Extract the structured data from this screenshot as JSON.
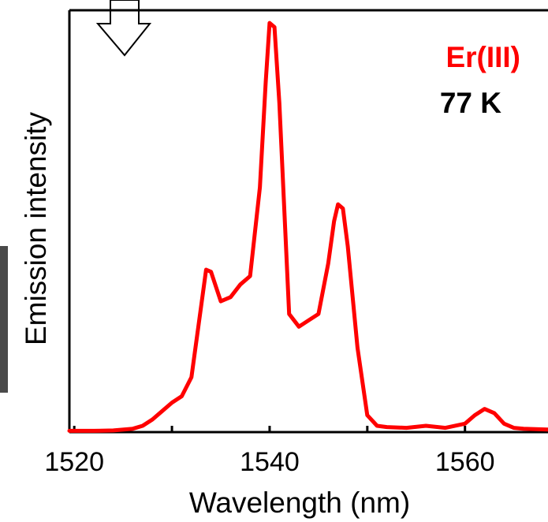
{
  "chart_data": {
    "type": "line",
    "xlabel": "Wavelength (nm)",
    "ylabel": "Emission intensity",
    "xlim": [
      1519.5,
      1568.5
    ],
    "ylim": [
      0,
      1.0
    ],
    "x_ticks": [
      1520,
      1530,
      1540,
      1550,
      1560
    ],
    "x_tick_labels": [
      "1520",
      "",
      "1540",
      "",
      "1560"
    ],
    "y_ticks_shown": false,
    "grid": false,
    "annotations": [
      {
        "text": "Er(III)",
        "color": "#ff0000"
      },
      {
        "text": "77 K",
        "color": "#000000"
      }
    ],
    "series": [
      {
        "color": "#ff0000",
        "x": [
          1519.5,
          1522,
          1524,
          1526,
          1527,
          1528,
          1529,
          1530,
          1531,
          1532,
          1533,
          1533.5,
          1534,
          1535,
          1536,
          1537,
          1538,
          1539,
          1539.6,
          1540,
          1540.5,
          1541,
          1542,
          1543,
          1544,
          1545,
          1546,
          1546.6,
          1547,
          1547.5,
          1548,
          1549,
          1550,
          1551,
          1552,
          1554,
          1556,
          1558,
          1560,
          1561,
          1562,
          1563,
          1564,
          1565,
          1566,
          1568.5
        ],
        "y": [
          0.003,
          0.003,
          0.004,
          0.008,
          0.015,
          0.03,
          0.05,
          0.07,
          0.085,
          0.13,
          0.3,
          0.385,
          0.38,
          0.31,
          0.32,
          0.35,
          0.37,
          0.58,
          0.83,
          0.97,
          0.96,
          0.78,
          0.28,
          0.25,
          0.265,
          0.28,
          0.4,
          0.5,
          0.54,
          0.53,
          0.44,
          0.2,
          0.04,
          0.015,
          0.012,
          0.01,
          0.015,
          0.01,
          0.02,
          0.04,
          0.055,
          0.045,
          0.02,
          0.01,
          0.008,
          0.006
        ]
      }
    ]
  }
}
